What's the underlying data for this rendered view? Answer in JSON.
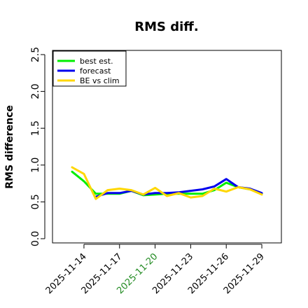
{
  "chart_data": {
    "type": "line",
    "title": "RMS diff.",
    "ylabel": "RMS difference",
    "xlabel": "",
    "ylim": [
      0,
      2.5
    ],
    "y_ticks": [
      "0.0",
      "0.5",
      "1.0",
      "1.5",
      "2.0",
      "2.5"
    ],
    "x_ticks": [
      "2025-11-14",
      "2025-11-17",
      "2025-11-20",
      "2025-11-23",
      "2025-11-26",
      "2025-11-29"
    ],
    "x_tick_colors": [
      "#000000",
      "#000000",
      "#228B22",
      "#000000",
      "#000000",
      "#000000"
    ],
    "x": [
      "2025-11-13",
      "2025-11-14",
      "2025-11-15",
      "2025-11-16",
      "2025-11-17",
      "2025-11-18",
      "2025-11-19",
      "2025-11-20",
      "2025-11-21",
      "2025-11-22",
      "2025-11-23",
      "2025-11-24",
      "2025-11-25",
      "2025-11-26",
      "2025-11-27",
      "2025-11-28",
      "2025-11-29"
    ],
    "series": [
      {
        "name": "best est.",
        "color": "#00ee00",
        "values": [
          0.91,
          0.78,
          0.61,
          0.61,
          0.61,
          0.65,
          0.59,
          0.6,
          0.61,
          0.61,
          0.61,
          0.61,
          0.66,
          0.76,
          0.7,
          0.67,
          0.61
        ]
      },
      {
        "name": "forecast",
        "color": "#0000ee",
        "values": [
          null,
          null,
          0.57,
          0.62,
          0.62,
          0.65,
          0.6,
          0.62,
          0.62,
          0.63,
          0.65,
          0.67,
          0.71,
          0.81,
          0.7,
          0.68,
          0.62
        ]
      },
      {
        "name": "BE vs clim",
        "color": "#ffd700",
        "values": [
          0.97,
          0.88,
          0.54,
          0.66,
          0.68,
          0.66,
          0.6,
          0.69,
          0.58,
          0.62,
          0.56,
          0.58,
          0.68,
          0.64,
          0.7,
          0.67,
          0.6
        ]
      }
    ],
    "legend_position": "top-left",
    "grid": false
  }
}
